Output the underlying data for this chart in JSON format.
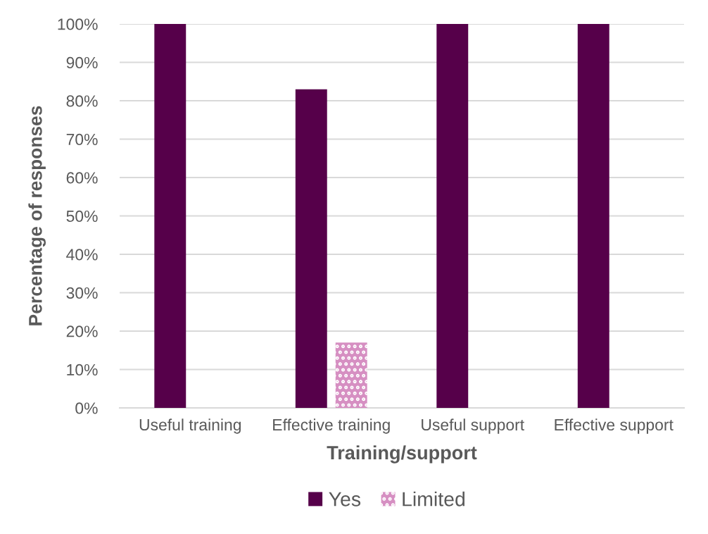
{
  "chart_data": {
    "type": "bar",
    "xlabel": "Training/support",
    "ylabel": "Percentage of responses",
    "categories": [
      "Useful training",
      "Effective training",
      "Useful support",
      "Effective support"
    ],
    "series": [
      {
        "name": "Yes",
        "color": "#56004a",
        "values": [
          100,
          83,
          100,
          100
        ]
      },
      {
        "name": "Limited",
        "color": "#d68fc2",
        "values": [
          0,
          17,
          0,
          0
        ]
      }
    ],
    "ylim": [
      0,
      100
    ],
    "yticks": [
      {
        "value": 0,
        "label": "0%"
      },
      {
        "value": 10,
        "label": "10%"
      },
      {
        "value": 20,
        "label": "20%"
      },
      {
        "value": 30,
        "label": "30%"
      },
      {
        "value": 40,
        "label": "40%"
      },
      {
        "value": 50,
        "label": "50%"
      },
      {
        "value": 60,
        "label": "60%"
      },
      {
        "value": 70,
        "label": "70%"
      },
      {
        "value": 80,
        "label": "80%"
      },
      {
        "value": 90,
        "label": "90%"
      },
      {
        "value": 100,
        "label": "100%"
      }
    ],
    "grid": "y",
    "legend": "bottom"
  }
}
